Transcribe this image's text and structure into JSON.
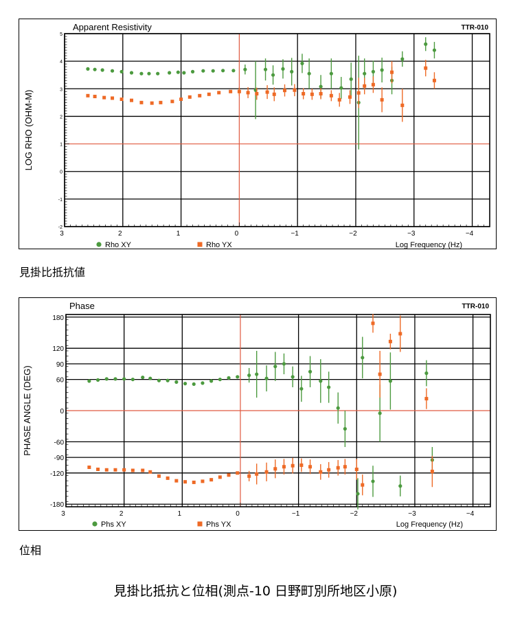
{
  "colors": {
    "xy": "#4c9a3f",
    "yx": "#ee6a26",
    "refline": "#e05a40",
    "grid": "#000000"
  },
  "captions": {
    "rho": "見掛比抵抗値",
    "phase": "位相"
  },
  "main_title": "見掛比抵抗と位相(測点-10 日野町別所地区小原)",
  "chart_data": [
    {
      "type": "scatter",
      "title": "Apparent Resistivity",
      "tag": "TTR-010",
      "ylabel": "LOG RHO (OHM-M)",
      "xlabel": "Log Frequency (Hz)",
      "xlim": [
        3.0,
        -4.3
      ],
      "ylim": [
        -2,
        5
      ],
      "x_ticks": [
        3,
        2,
        1,
        0,
        -1,
        -2,
        -3,
        -4
      ],
      "x_tick_labels": [
        "3",
        "2",
        "1",
        "0",
        "−1",
        "−2",
        "−3",
        "−4"
      ],
      "y_ticks": [
        -2,
        -1,
        0,
        1,
        2,
        3,
        4,
        5
      ],
      "y_tick_labels": [
        "-2",
        "-1",
        "0",
        "1",
        "2",
        "3",
        "4",
        "5"
      ],
      "reference_lines": {
        "x": 0,
        "y": 1
      },
      "series": [
        {
          "name": "Rho XY",
          "marker": "circle",
          "color": "#4c9a3f",
          "points": [
            [
              2.6,
              3.72,
              0
            ],
            [
              2.48,
              3.7,
              0
            ],
            [
              2.35,
              3.68,
              0
            ],
            [
              2.18,
              3.65,
              0
            ],
            [
              2.02,
              3.62,
              0
            ],
            [
              1.85,
              3.58,
              0
            ],
            [
              1.68,
              3.55,
              0
            ],
            [
              1.55,
              3.55,
              0
            ],
            [
              1.4,
              3.55,
              0
            ],
            [
              1.2,
              3.58,
              0
            ],
            [
              1.05,
              3.6,
              0
            ],
            [
              0.95,
              3.58,
              0
            ],
            [
              0.8,
              3.62,
              0
            ],
            [
              0.62,
              3.65,
              0
            ],
            [
              0.45,
              3.65,
              0
            ],
            [
              0.28,
              3.66,
              0
            ],
            [
              0.1,
              3.66,
              0
            ],
            [
              -0.1,
              3.7,
              0.18
            ],
            [
              -0.28,
              2.95,
              1.05
            ],
            [
              -0.45,
              3.7,
              0.4
            ],
            [
              -0.58,
              3.5,
              0.35
            ],
            [
              -0.75,
              3.72,
              0.35
            ],
            [
              -0.9,
              3.62,
              0.5
            ],
            [
              -1.08,
              3.92,
              0.35
            ],
            [
              -1.2,
              3.55,
              0.55
            ],
            [
              -1.4,
              3.08,
              0.42
            ],
            [
              -1.58,
              3.55,
              0.55
            ],
            [
              -1.75,
              3.03,
              0.4
            ],
            [
              -1.92,
              3.35,
              0.6
            ],
            [
              -2.05,
              2.5,
              1.7
            ],
            [
              -2.15,
              3.55,
              0.55
            ],
            [
              -2.3,
              3.62,
              0.4
            ],
            [
              -2.45,
              3.68,
              0.45
            ],
            [
              -2.62,
              3.3,
              0.5
            ],
            [
              -2.8,
              4.08,
              0.28
            ],
            [
              -3.2,
              4.62,
              0.25
            ],
            [
              -3.35,
              4.4,
              0.3
            ]
          ]
        },
        {
          "name": "Rho YX",
          "marker": "square",
          "color": "#ee6a26",
          "points": [
            [
              2.6,
              2.75,
              0
            ],
            [
              2.48,
              2.72,
              0
            ],
            [
              2.32,
              2.68,
              0
            ],
            [
              2.18,
              2.66,
              0
            ],
            [
              2.02,
              2.62,
              0
            ],
            [
              1.85,
              2.58,
              0
            ],
            [
              1.68,
              2.5,
              0
            ],
            [
              1.5,
              2.48,
              0
            ],
            [
              1.35,
              2.5,
              0
            ],
            [
              1.15,
              2.54,
              0
            ],
            [
              1.0,
              2.62,
              0
            ],
            [
              0.85,
              2.7,
              0
            ],
            [
              0.68,
              2.75,
              0
            ],
            [
              0.52,
              2.8,
              0
            ],
            [
              0.35,
              2.86,
              0
            ],
            [
              0.15,
              2.9,
              0
            ],
            [
              0.0,
              2.9,
              0.15
            ],
            [
              -0.15,
              2.86,
              0.2
            ],
            [
              -0.3,
              2.82,
              0.22
            ],
            [
              -0.48,
              2.88,
              0.25
            ],
            [
              -0.6,
              2.8,
              0.25
            ],
            [
              -0.78,
              2.94,
              0.22
            ],
            [
              -0.95,
              2.95,
              0.22
            ],
            [
              -1.1,
              2.82,
              0.2
            ],
            [
              -1.25,
              2.8,
              0.2
            ],
            [
              -1.4,
              2.82,
              0.2
            ],
            [
              -1.58,
              2.75,
              0.2
            ],
            [
              -1.72,
              2.6,
              0.25
            ],
            [
              -1.9,
              2.7,
              0.25
            ],
            [
              -2.05,
              2.85,
              0.55
            ],
            [
              -2.15,
              3.1,
              0.3
            ],
            [
              -2.3,
              3.15,
              0.3
            ],
            [
              -2.45,
              2.6,
              0.45
            ],
            [
              -2.62,
              3.6,
              0.4
            ],
            [
              -2.8,
              2.4,
              0.6
            ],
            [
              -3.2,
              3.75,
              0.3
            ],
            [
              -3.35,
              3.3,
              0.3
            ]
          ]
        }
      ]
    },
    {
      "type": "scatter",
      "title": "Phase",
      "tag": "TTR-010",
      "ylabel": "PHASE ANGLE (DEG)",
      "xlabel": "Log Frequency (Hz)",
      "xlim": [
        3.0,
        -4.3
      ],
      "ylim": [
        -185,
        185
      ],
      "x_ticks": [
        3,
        2,
        1,
        0,
        -1,
        -2,
        -3,
        -4
      ],
      "x_tick_labels": [
        "3",
        "2",
        "1",
        "0",
        "−1",
        "−2",
        "−3",
        "−4"
      ],
      "y_ticks": [
        180,
        120,
        90,
        60,
        0,
        -60,
        -90,
        -120,
        -180
      ],
      "y_tick_labels": [
        "180",
        "120",
        "90",
        "60",
        "0",
        "-60",
        "-90",
        "-120",
        "-180"
      ],
      "reference_lines": {
        "x": 0,
        "y": 0
      },
      "series": [
        {
          "name": "Phs XY",
          "marker": "circle",
          "color": "#4c9a3f",
          "points": [
            [
              2.6,
              57,
              0
            ],
            [
              2.45,
              59,
              0
            ],
            [
              2.3,
              61,
              0
            ],
            [
              2.15,
              61,
              0
            ],
            [
              2.0,
              61,
              0
            ],
            [
              1.85,
              60,
              0
            ],
            [
              1.68,
              64,
              0
            ],
            [
              1.55,
              62,
              0
            ],
            [
              1.4,
              58,
              0
            ],
            [
              1.25,
              58,
              0
            ],
            [
              1.1,
              55,
              0
            ],
            [
              0.95,
              52,
              0
            ],
            [
              0.8,
              51,
              0
            ],
            [
              0.65,
              53,
              0
            ],
            [
              0.5,
              57,
              0
            ],
            [
              0.35,
              60,
              0
            ],
            [
              0.2,
              63,
              0
            ],
            [
              0.05,
              65,
              0
            ],
            [
              -0.15,
              68,
              14
            ],
            [
              -0.28,
              70,
              45
            ],
            [
              -0.45,
              62,
              25
            ],
            [
              -0.6,
              85,
              28
            ],
            [
              -0.75,
              90,
              20
            ],
            [
              -0.9,
              65,
              20
            ],
            [
              -1.05,
              42,
              25
            ],
            [
              -1.2,
              75,
              30
            ],
            [
              -1.38,
              57,
              42
            ],
            [
              -1.52,
              45,
              30
            ],
            [
              -1.68,
              5,
              30
            ],
            [
              -1.8,
              -35,
              35
            ],
            [
              -2.02,
              -160,
              30
            ],
            [
              -2.1,
              102,
              40
            ],
            [
              -2.28,
              -136,
              30
            ],
            [
              -2.4,
              -5,
              55
            ],
            [
              -2.58,
              57,
              55
            ],
            [
              -2.75,
              -145,
              20
            ],
            [
              -3.2,
              72,
              25
            ],
            [
              -3.3,
              -95,
              25
            ]
          ]
        },
        {
          "name": "Phs YX",
          "marker": "square",
          "color": "#ee6a26",
          "points": [
            [
              2.6,
              -109,
              0
            ],
            [
              2.45,
              -113,
              0
            ],
            [
              2.3,
              -114,
              0
            ],
            [
              2.15,
              -114,
              0
            ],
            [
              2.0,
              -114,
              0
            ],
            [
              1.85,
              -115,
              0
            ],
            [
              1.68,
              -115,
              0
            ],
            [
              1.55,
              -118,
              0
            ],
            [
              1.4,
              -126,
              0
            ],
            [
              1.25,
              -130,
              0
            ],
            [
              1.1,
              -135,
              0
            ],
            [
              0.95,
              -137,
              0
            ],
            [
              0.8,
              -138,
              0
            ],
            [
              0.65,
              -136,
              0
            ],
            [
              0.5,
              -133,
              0
            ],
            [
              0.35,
              -128,
              0
            ],
            [
              0.2,
              -124,
              0
            ],
            [
              0.05,
              -120,
              0
            ],
            [
              -0.15,
              -126,
              10
            ],
            [
              -0.28,
              -122,
              20
            ],
            [
              -0.45,
              -118,
              18
            ],
            [
              -0.6,
              -112,
              18
            ],
            [
              -0.75,
              -108,
              15
            ],
            [
              -0.9,
              -106,
              15
            ],
            [
              -1.05,
              -105,
              13
            ],
            [
              -1.2,
              -108,
              14
            ],
            [
              -1.38,
              -118,
              15
            ],
            [
              -1.52,
              -114,
              15
            ],
            [
              -1.68,
              -110,
              15
            ],
            [
              -1.8,
              -108,
              15
            ],
            [
              -2.0,
              -113,
              20
            ],
            [
              -2.1,
              -143,
              20
            ],
            [
              -2.28,
              168,
              18
            ],
            [
              -2.4,
              70,
              45
            ],
            [
              -2.58,
              133,
              15
            ],
            [
              -2.75,
              148,
              35
            ],
            [
              -3.2,
              23,
              20
            ],
            [
              -3.3,
              -117,
              30
            ]
          ]
        }
      ]
    }
  ]
}
